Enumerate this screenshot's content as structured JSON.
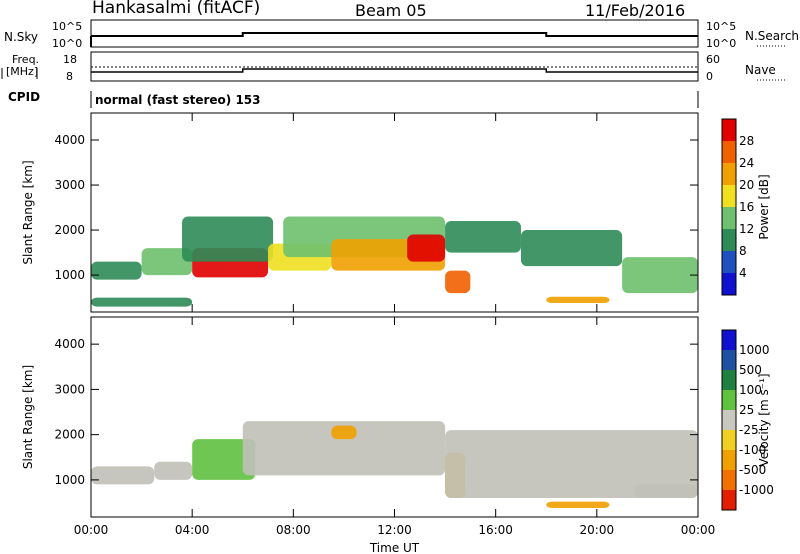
{
  "header": {
    "station": "Hankasalmi (fitACF)",
    "beam": "Beam 05",
    "date": "11/Feb/2016"
  },
  "top_panels": {
    "nsky_label": "N.Sky",
    "nsky_ticks": [
      "10^5",
      "10^0"
    ],
    "nsearch_label": "N.Search",
    "nsearch_ticks": [
      "10^5",
      "10^0"
    ],
    "freq_label_1": "Freq.",
    "freq_label_2": "[MHz]",
    "freq_ticks": [
      "18",
      "8"
    ],
    "nave_label": "Nave",
    "nave_ticks": [
      "60",
      "0"
    ],
    "cpid_label": "CPID",
    "cpid_text": "normal (fast stereo) 153"
  },
  "colors": {
    "power_scale": [
      "#1010d0",
      "#2050c0",
      "#2e8b57",
      "#6ec06e",
      "#f0e020",
      "#f0a000",
      "#f06000",
      "#e00000"
    ],
    "velocity_scale": [
      "#1010d0",
      "#2050a0",
      "#208040",
      "#60c040",
      "#c8c8c0",
      "#f0d020",
      "#f0a000",
      "#f07000",
      "#e02000"
    ],
    "ground_scatter": "#c0c0b8"
  },
  "chart_data": [
    {
      "type": "heatmap",
      "title": "",
      "xlabel": "Time UT",
      "ylabel": "Slant Range [km]",
      "x_ticks": [
        "00:00",
        "04:00",
        "08:00",
        "12:00",
        "16:00",
        "20:00",
        "00:00"
      ],
      "x_range_hours": [
        0,
        24
      ],
      "y_ticks": [
        1000,
        2000,
        3000,
        4000
      ],
      "ylim": [
        180,
        4600
      ],
      "colorbar_label": "Power [dB]",
      "colorbar_ticks": [
        "28",
        "24",
        "20",
        "16",
        "12",
        "8",
        "4"
      ],
      "colorbar_range": [
        0,
        32
      ],
      "regions": [
        {
          "t0": 0.0,
          "t1": 2.0,
          "r0": 900,
          "r1": 1300,
          "level": 8
        },
        {
          "t0": 2.0,
          "t1": 4.0,
          "r0": 1000,
          "r1": 1600,
          "level": 14
        },
        {
          "t0": 4.0,
          "t1": 7.0,
          "r0": 950,
          "r1": 1600,
          "level": 28
        },
        {
          "t0": 3.6,
          "t1": 7.2,
          "r0": 1300,
          "r1": 2300,
          "level": 10
        },
        {
          "t0": 7.0,
          "t1": 9.5,
          "r0": 1100,
          "r1": 1700,
          "level": 18
        },
        {
          "t0": 7.6,
          "t1": 14.0,
          "r0": 1400,
          "r1": 2300,
          "level": 14
        },
        {
          "t0": 9.5,
          "t1": 14.0,
          "r0": 1100,
          "r1": 1800,
          "level": 22
        },
        {
          "t0": 12.5,
          "t1": 14.0,
          "r0": 1300,
          "r1": 1900,
          "level": 28
        },
        {
          "t0": 14.0,
          "t1": 15.0,
          "r0": 600,
          "r1": 1100,
          "level": 24
        },
        {
          "t0": 14.0,
          "t1": 17.0,
          "r0": 1500,
          "r1": 2200,
          "level": 8
        },
        {
          "t0": 17.0,
          "t1": 21.0,
          "r0": 1200,
          "r1": 2000,
          "level": 8
        },
        {
          "t0": 21.0,
          "t1": 24.0,
          "r0": 600,
          "r1": 1400,
          "level": 12
        },
        {
          "t0": 18.0,
          "t1": 20.5,
          "r0": 380,
          "r1": 520,
          "level": 20
        },
        {
          "t0": 0.0,
          "t1": 4.0,
          "r0": 300,
          "r1": 500,
          "level": 8
        }
      ]
    },
    {
      "type": "heatmap",
      "title": "",
      "xlabel": "Time UT",
      "ylabel": "Slant Range [km]",
      "x_ticks": [
        "00:00",
        "04:00",
        "08:00",
        "12:00",
        "16:00",
        "20:00",
        "00:00"
      ],
      "x_range_hours": [
        0,
        24
      ],
      "y_ticks": [
        1000,
        2000,
        3000,
        4000
      ],
      "ylim": [
        180,
        4600
      ],
      "colorbar_label": "Velocity [m s⁻¹]",
      "colorbar_ticks": [
        "1000",
        "500",
        "100",
        "25",
        "-25",
        "-100",
        "-500",
        "-1000"
      ],
      "regions": [
        {
          "t0": 0.0,
          "t1": 2.5,
          "r0": 900,
          "r1": 1300,
          "category": "ground"
        },
        {
          "t0": 2.5,
          "t1": 4.0,
          "r0": 1000,
          "r1": 1400,
          "category": "ground"
        },
        {
          "t0": 4.0,
          "t1": 6.5,
          "r0": 1000,
          "r1": 1900,
          "category": "positive"
        },
        {
          "t0": 6.0,
          "t1": 14.0,
          "r0": 1100,
          "r1": 2300,
          "category": "ground"
        },
        {
          "t0": 9.5,
          "t1": 10.5,
          "r0": 1900,
          "r1": 2200,
          "category": "negative"
        },
        {
          "t0": 14.0,
          "t1": 14.8,
          "r0": 600,
          "r1": 1600,
          "category": "negative"
        },
        {
          "t0": 14.0,
          "t1": 24.0,
          "r0": 600,
          "r1": 2100,
          "category": "ground"
        },
        {
          "t0": 18.0,
          "t1": 20.5,
          "r0": 380,
          "r1": 520,
          "category": "negative"
        },
        {
          "t0": 21.5,
          "t1": 24.0,
          "r0": 600,
          "r1": 900,
          "category": "ground"
        }
      ]
    }
  ]
}
